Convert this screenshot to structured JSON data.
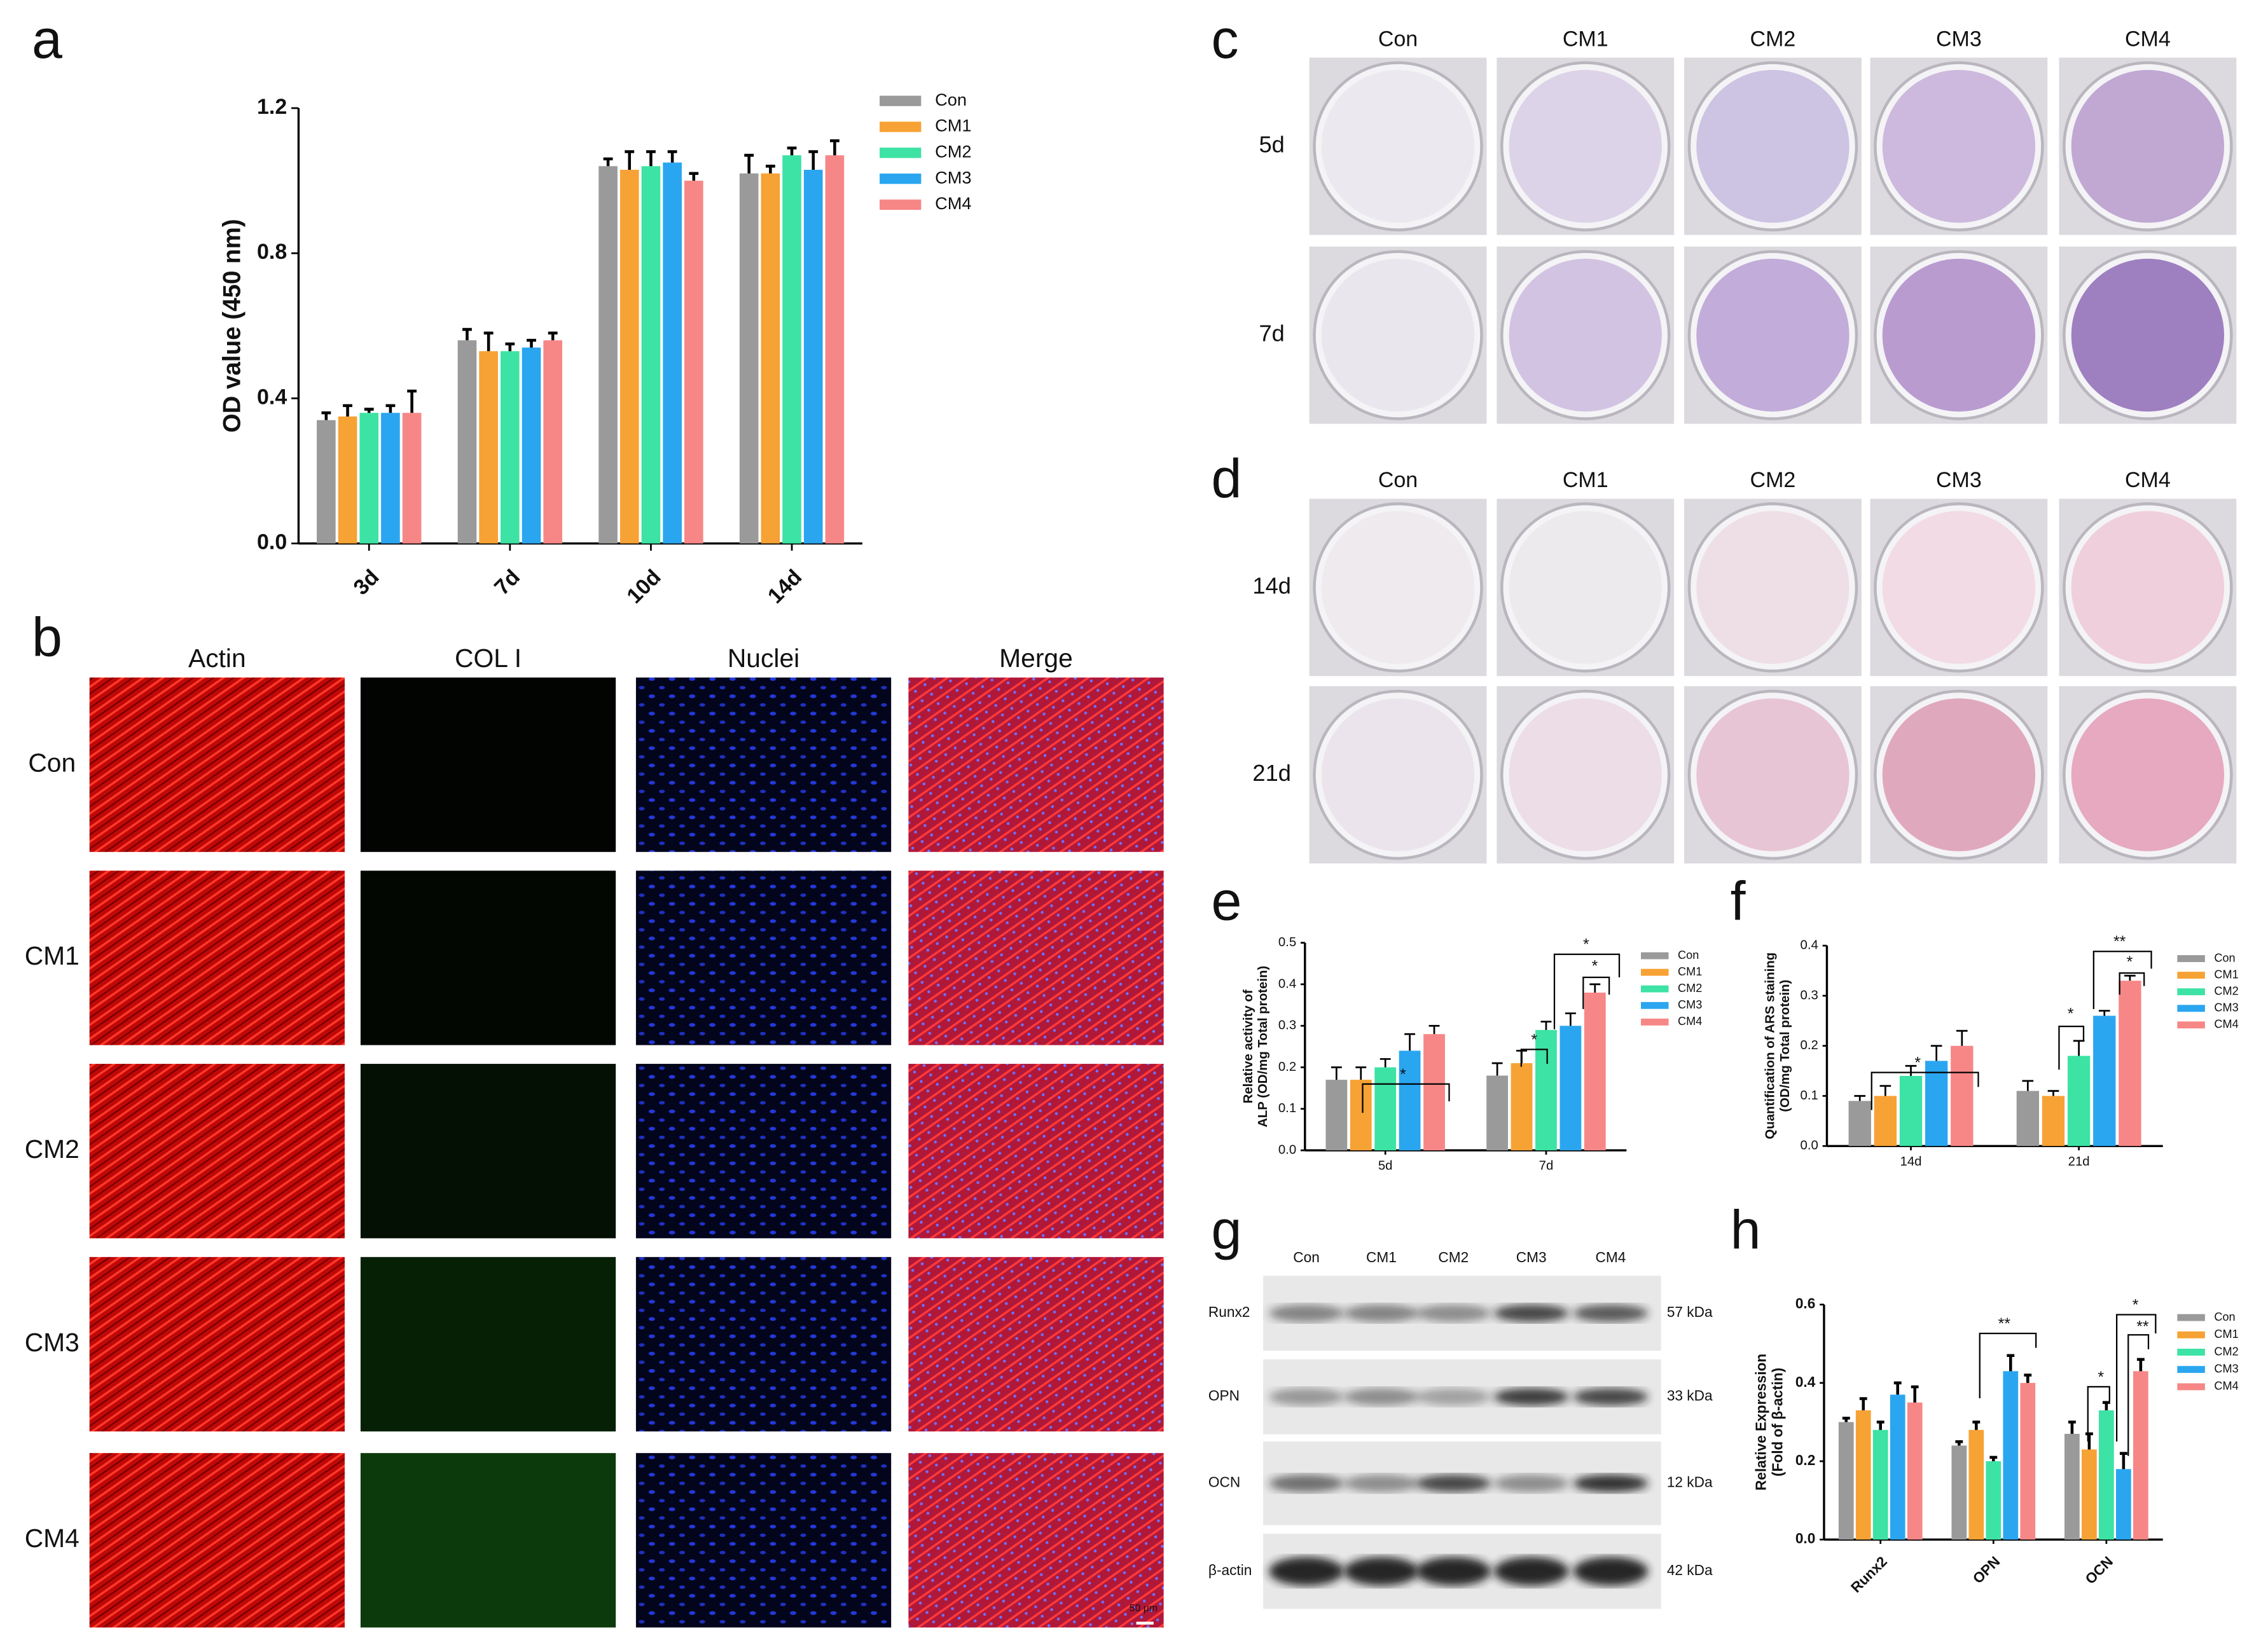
{
  "chart_data": [
    {
      "type": "bar",
      "panel": "a",
      "ylabel": [
        "OD value (450 nm)"
      ],
      "categories": [
        "3d",
        "7d",
        "10d",
        "14d"
      ],
      "ylim": [
        0,
        1.2
      ],
      "yticks": [
        {
          "value": 0,
          "label": "0.0"
        },
        0.4,
        0.8,
        1.2
      ],
      "series": [
        {
          "name": "Con",
          "color": "#9a9a9a",
          "values": [
            0.34,
            0.56,
            1.04,
            1.02
          ],
          "errors": [
            0.02,
            0.03,
            0.02,
            0.05
          ]
        },
        {
          "name": "CM1",
          "color": "#f7a234",
          "values": [
            0.35,
            0.53,
            1.03,
            1.02
          ],
          "errors": [
            0.03,
            0.05,
            0.05,
            0.02
          ]
        },
        {
          "name": "CM2",
          "color": "#3de3a4",
          "values": [
            0.36,
            0.53,
            1.04,
            1.07
          ],
          "errors": [
            0.01,
            0.02,
            0.04,
            0.02
          ]
        },
        {
          "name": "CM3",
          "color": "#2aa6f0",
          "values": [
            0.36,
            0.54,
            1.05,
            1.03
          ],
          "errors": [
            0.02,
            0.02,
            0.03,
            0.05
          ]
        },
        {
          "name": "CM4",
          "color": "#f78787",
          "values": [
            0.36,
            0.56,
            1.0,
            1.07
          ],
          "errors": [
            0.06,
            0.02,
            0.02,
            0.04
          ]
        }
      ]
    },
    {
      "type": "bar",
      "panel": "e",
      "ylabel": [
        "Relative activity of",
        "ALP (OD/mg Total protein)"
      ],
      "categories": [
        "5d",
        "7d"
      ],
      "ylim": [
        0,
        0.5
      ],
      "yticks": [
        {
          "value": 0,
          "label": "0.0"
        },
        0.1,
        0.2,
        0.3,
        0.4,
        0.5
      ],
      "annotations": [
        "*",
        "*",
        "*",
        "*"
      ],
      "series": [
        {
          "name": "Con",
          "color": "#9a9a9a",
          "values": [
            0.17,
            0.18
          ],
          "errors": [
            0.03,
            0.03
          ]
        },
        {
          "name": "CM1",
          "color": "#f7a234",
          "values": [
            0.17,
            0.21
          ],
          "errors": [
            0.03,
            0.03
          ]
        },
        {
          "name": "CM2",
          "color": "#3de3a4",
          "values": [
            0.2,
            0.29
          ],
          "errors": [
            0.02,
            0.02
          ]
        },
        {
          "name": "CM3",
          "color": "#2aa6f0",
          "values": [
            0.24,
            0.3
          ],
          "errors": [
            0.04,
            0.03
          ]
        },
        {
          "name": "CM4",
          "color": "#f78787",
          "values": [
            0.28,
            0.38
          ],
          "errors": [
            0.02,
            0.02
          ]
        }
      ]
    },
    {
      "type": "bar",
      "panel": "f",
      "ylabel": [
        "Quantification of ARS staining",
        "(OD/mg Total protein)"
      ],
      "categories": [
        "14d",
        "21d"
      ],
      "ylim": [
        0,
        0.4
      ],
      "yticks": [
        {
          "value": 0,
          "label": "0.0"
        },
        0.1,
        0.2,
        0.3,
        0.4
      ],
      "annotations": [
        "*",
        "*",
        "**",
        "*"
      ],
      "series": [
        {
          "name": "Con",
          "color": "#9a9a9a",
          "values": [
            0.09,
            0.11
          ],
          "errors": [
            0.01,
            0.02
          ]
        },
        {
          "name": "CM1",
          "color": "#f7a234",
          "values": [
            0.1,
            0.1
          ],
          "errors": [
            0.02,
            0.01
          ]
        },
        {
          "name": "CM2",
          "color": "#3de3a4",
          "values": [
            0.14,
            0.18
          ],
          "errors": [
            0.02,
            0.03
          ]
        },
        {
          "name": "CM3",
          "color": "#2aa6f0",
          "values": [
            0.17,
            0.26
          ],
          "errors": [
            0.03,
            0.01
          ]
        },
        {
          "name": "CM4",
          "color": "#f78787",
          "values": [
            0.2,
            0.33
          ],
          "errors": [
            0.03,
            0.01
          ]
        }
      ]
    },
    {
      "type": "bar",
      "panel": "h",
      "ylabel": [
        "Relative Expression",
        "(Fold of β-actin)"
      ],
      "categories": [
        "Runx2",
        "OPN",
        "OCN"
      ],
      "ylim": [
        0,
        0.6
      ],
      "yticks": [
        {
          "value": 0,
          "label": "0.0"
        },
        0.2,
        0.4,
        0.6
      ],
      "annotations": [
        "**",
        "*",
        "*",
        "**"
      ],
      "series": [
        {
          "name": "Con",
          "color": "#9a9a9a",
          "values": [
            0.3,
            0.24,
            0.27
          ],
          "errors": [
            0.01,
            0.01,
            0.03
          ]
        },
        {
          "name": "CM1",
          "color": "#f7a234",
          "values": [
            0.33,
            0.28,
            0.23
          ],
          "errors": [
            0.03,
            0.02,
            0.04
          ]
        },
        {
          "name": "CM2",
          "color": "#3de3a4",
          "values": [
            0.28,
            0.2,
            0.33
          ],
          "errors": [
            0.02,
            0.01,
            0.02
          ]
        },
        {
          "name": "CM3",
          "color": "#2aa6f0",
          "values": [
            0.37,
            0.43,
            0.18
          ],
          "errors": [
            0.03,
            0.04,
            0.04
          ]
        },
        {
          "name": "CM4",
          "color": "#f78787",
          "values": [
            0.35,
            0.4,
            0.43
          ],
          "errors": [
            0.04,
            0.02,
            0.03
          ]
        }
      ]
    }
  ],
  "image_panels": {
    "b": {
      "panel": "b",
      "columns": [
        "Actin",
        "COL I",
        "Nuclei",
        "Merge"
      ],
      "rows": [
        "Con",
        "CM1",
        "CM2",
        "CM3",
        "CM4"
      ],
      "scale_bar": "50 μm"
    },
    "c": {
      "panel": "c",
      "columns": [
        "Con",
        "CM1",
        "CM2",
        "CM3",
        "CM4"
      ],
      "rows": [
        "5d",
        "7d"
      ]
    },
    "d": {
      "panel": "d",
      "columns": [
        "Con",
        "CM1",
        "CM2",
        "CM3",
        "CM4"
      ],
      "rows": [
        "14d",
        "21d"
      ]
    },
    "g": {
      "panel": "g",
      "columns": [
        "Con",
        "CM1",
        "CM2",
        "CM3",
        "CM4"
      ],
      "rows": [
        "Runx2",
        "OPN",
        "OCN",
        "β-actin"
      ],
      "sizes": [
        "57 kDa",
        "33 kDa",
        "12 kDa",
        "42 kDa"
      ]
    }
  }
}
